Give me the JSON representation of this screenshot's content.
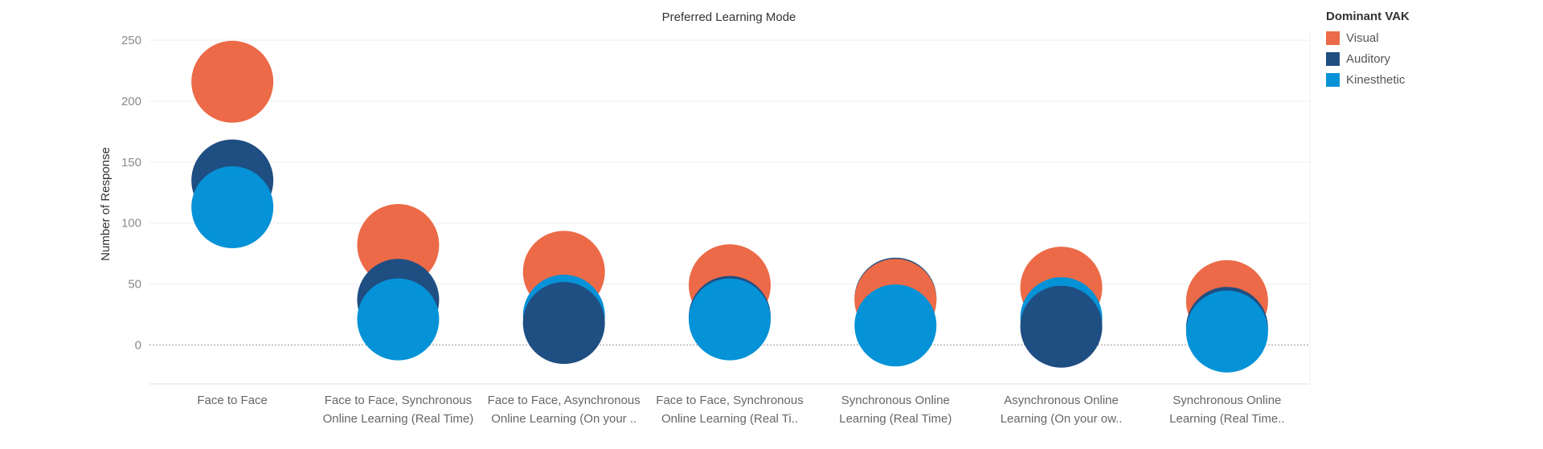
{
  "chart_data": {
    "type": "scatter",
    "title": "Preferred Learning Mode",
    "ylabel": "Number of Response",
    "xlabel": "",
    "ylim": [
      -32,
      258
    ],
    "yticks": [
      0,
      50,
      100,
      150,
      200,
      250
    ],
    "grid": true,
    "legend_position": "top-right",
    "legend_title": "Dominant VAK",
    "categories": [
      [
        "Face to Face"
      ],
      [
        "Face to Face, Synchronous",
        "Online Learning (Real Time)"
      ],
      [
        "Face to Face, Asynchronous",
        "Online Learning (On your .."
      ],
      [
        "Face to Face, Synchronous",
        "Online Learning (Real Ti.."
      ],
      [
        "Synchronous Online",
        "Learning (Real Time)"
      ],
      [
        "Asynchronous Online",
        "Learning (On your ow.."
      ],
      [
        "Synchronous Online",
        "Learning (Real Time.."
      ]
    ],
    "series": [
      {
        "name": "Visual",
        "color": "#EC6A47",
        "values": [
          216,
          82,
          60,
          49,
          37,
          47,
          36
        ]
      },
      {
        "name": "Auditory",
        "color": "#1F4E82",
        "values": [
          135,
          37,
          18,
          23,
          38,
          15,
          14
        ]
      },
      {
        "name": "Kinesthetic",
        "color": "#0592D7",
        "values": [
          113,
          21,
          24,
          21,
          16,
          22,
          11
        ]
      }
    ],
    "draw_order": [
      [
        "Visual",
        "Auditory",
        "Kinesthetic"
      ],
      [
        "Visual",
        "Auditory",
        "Kinesthetic"
      ],
      [
        "Visual",
        "Kinesthetic",
        "Auditory"
      ],
      [
        "Visual",
        "Auditory",
        "Kinesthetic"
      ],
      [
        "Auditory",
        "Visual",
        "Kinesthetic"
      ],
      [
        "Visual",
        "Kinesthetic",
        "Auditory"
      ],
      [
        "Visual",
        "Auditory",
        "Kinesthetic"
      ]
    ]
  }
}
